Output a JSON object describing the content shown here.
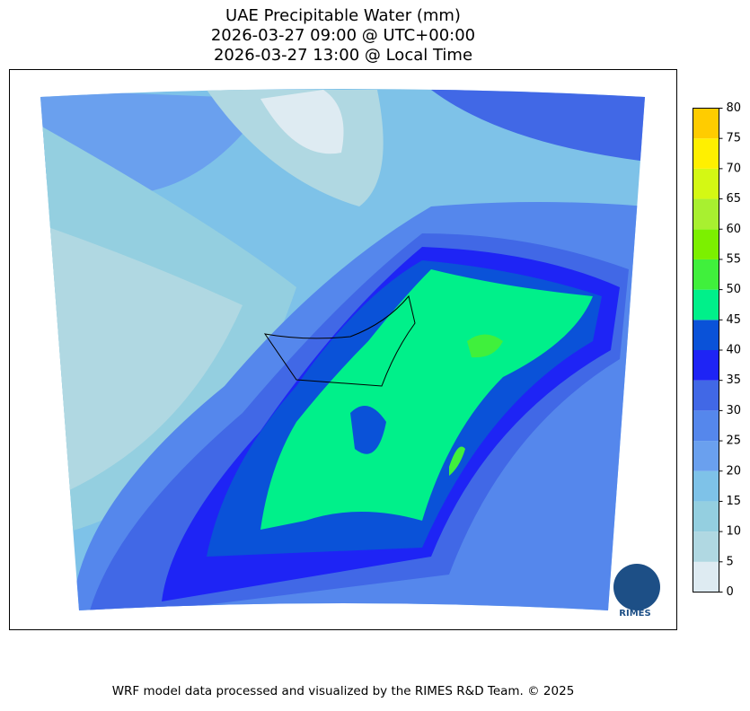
{
  "title": [
    "UAE Precipitable Water (mm)",
    "2026-03-27 09:00 @ UTC+00:00",
    "2026-03-27 13:00 @ Local Time"
  ],
  "colorbar": {
    "lim": [
      0,
      80
    ],
    "ticks": [
      0,
      5,
      10,
      15,
      20,
      25,
      30,
      35,
      40,
      45,
      50,
      55,
      60,
      65,
      70,
      75,
      80
    ],
    "colors": [
      "#deebf2",
      "#b0d8e2",
      "#94cfe0",
      "#7ec2e8",
      "#6aa0ee",
      "#5587ec",
      "#4168e6",
      "#1e24f5",
      "#0a52d8",
      "#00f08a",
      "#40f03c",
      "#7cf000",
      "#a8f030",
      "#d4f814",
      "#fff000",
      "#ffcc00"
    ]
  },
  "logo": "RIMES",
  "footer": "WRF model data processed and visualized by the RIMES R&D Team. © 2025"
}
